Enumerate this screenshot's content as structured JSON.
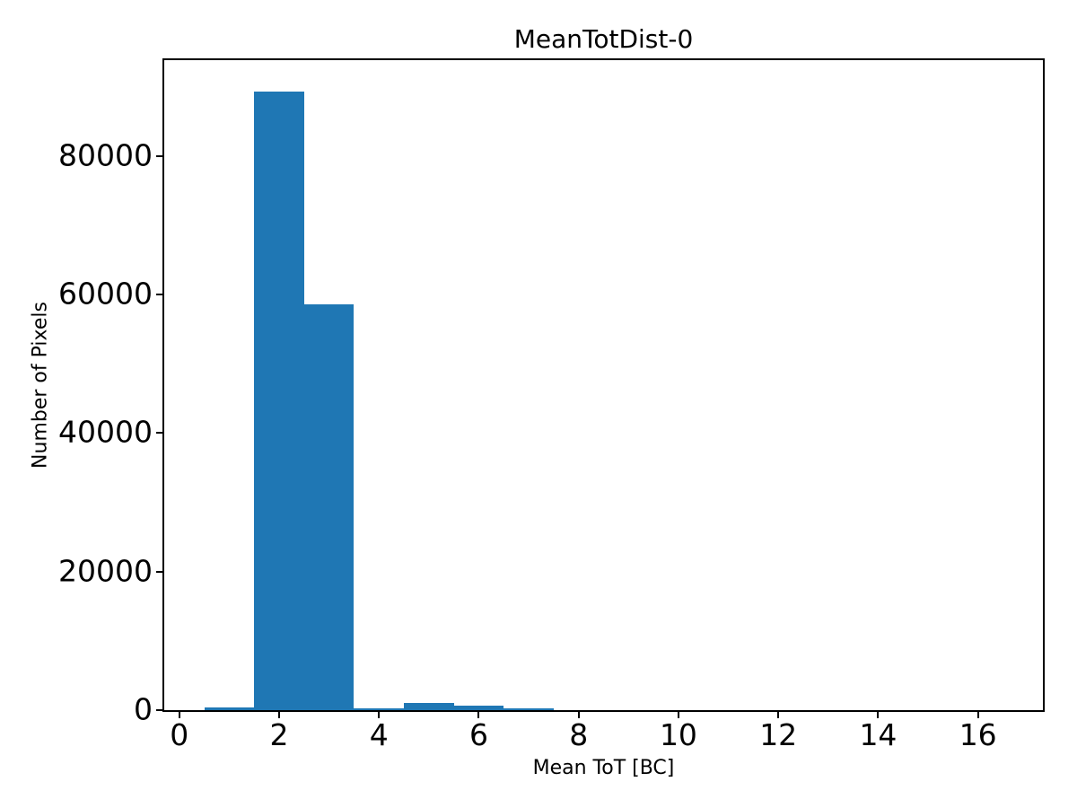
{
  "figure": {
    "background": "#ffffff"
  },
  "chart_data": {
    "type": "bar",
    "title": "MeanTotDist-0",
    "xlabel": "Mean ToT [BC]",
    "ylabel": "Number of Pixels",
    "bin_edges": [
      0.5,
      1.5,
      2.5,
      3.5,
      4.5,
      5.5,
      6.5,
      7.5,
      8.5,
      9.5,
      10.5,
      11.5,
      12.5,
      13.5,
      14.5,
      15.5,
      16.5
    ],
    "values": [
      400,
      89300,
      58600,
      200,
      1000,
      650,
      200,
      0,
      0,
      0,
      0,
      0,
      0,
      0,
      0,
      0
    ],
    "xticks": [
      0,
      2,
      4,
      6,
      8,
      10,
      12,
      14,
      16
    ],
    "yticks": [
      0,
      20000,
      40000,
      60000,
      80000
    ],
    "xlim": [
      -0.3,
      17.3
    ],
    "ylim": [
      0,
      93800
    ],
    "bar_color": "#1f77b4",
    "axis_color": "#000000",
    "text_color": "#000000",
    "grid": false,
    "legend": null
  }
}
